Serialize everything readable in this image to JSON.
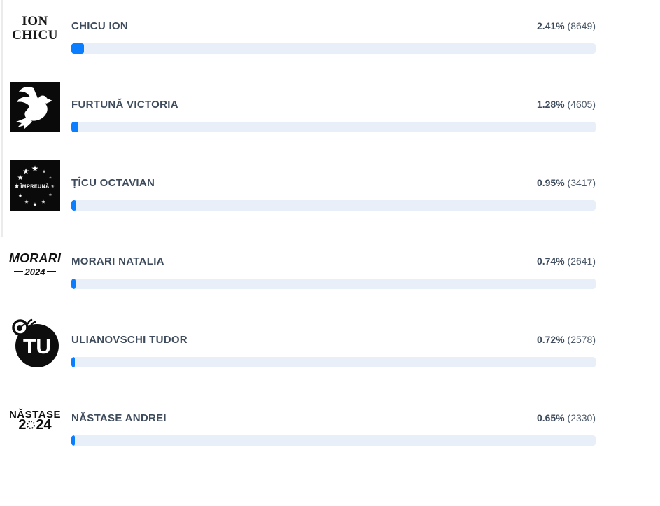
{
  "colors": {
    "bar_fill": "#0b7dff",
    "bar_track": "#e9eff8",
    "name_text": "#3d4b5c",
    "logo_black": "#0d0d0d"
  },
  "candidates": [
    {
      "name": "CHICU ION",
      "percent_label": "2.41%",
      "votes_label": "(8649)",
      "percent_value": 2.41,
      "logo_line1": "ION",
      "logo_line2": "CHICU"
    },
    {
      "name": "FURTUNĂ VICTORIA",
      "percent_label": "1.28%",
      "votes_label": "(4605)",
      "percent_value": 1.28
    },
    {
      "name": "ȚÎCU OCTAVIAN",
      "percent_label": "0.95%",
      "votes_label": "(3417)",
      "percent_value": 0.95,
      "logo_label": "ÎMPREUNĂ"
    },
    {
      "name": "MORARI NATALIA",
      "percent_label": "0.74%",
      "votes_label": "(2641)",
      "percent_value": 0.74,
      "logo_line1": "MORARI",
      "logo_line2": "2024"
    },
    {
      "name": "ULIANOVSCHI TUDOR",
      "percent_label": "0.72%",
      "votes_label": "(2578)",
      "percent_value": 0.72,
      "logo_label": "TU"
    },
    {
      "name": "NĂSTASE ANDREI",
      "percent_label": "0.65%",
      "votes_label": "(2330)",
      "percent_value": 0.65,
      "logo_line1": "NĂSTASE",
      "logo_line2_prefix": "2",
      "logo_line2_suffix": "24"
    }
  ],
  "chart_data": {
    "type": "bar",
    "orientation": "horizontal",
    "categories": [
      "CHICU ION",
      "FURTUNĂ VICTORIA",
      "ȚÎCU OCTAVIAN",
      "MORARI NATALIA",
      "ULIANOVSCHI TUDOR",
      "NĂSTASE ANDREI"
    ],
    "values": [
      2.41,
      1.28,
      0.95,
      0.74,
      0.72,
      0.65
    ],
    "votes": [
      8649,
      4605,
      3417,
      2641,
      2578,
      2330
    ],
    "value_unit": "%",
    "xlim": [
      0,
      100
    ],
    "grid": false,
    "legend": false
  }
}
